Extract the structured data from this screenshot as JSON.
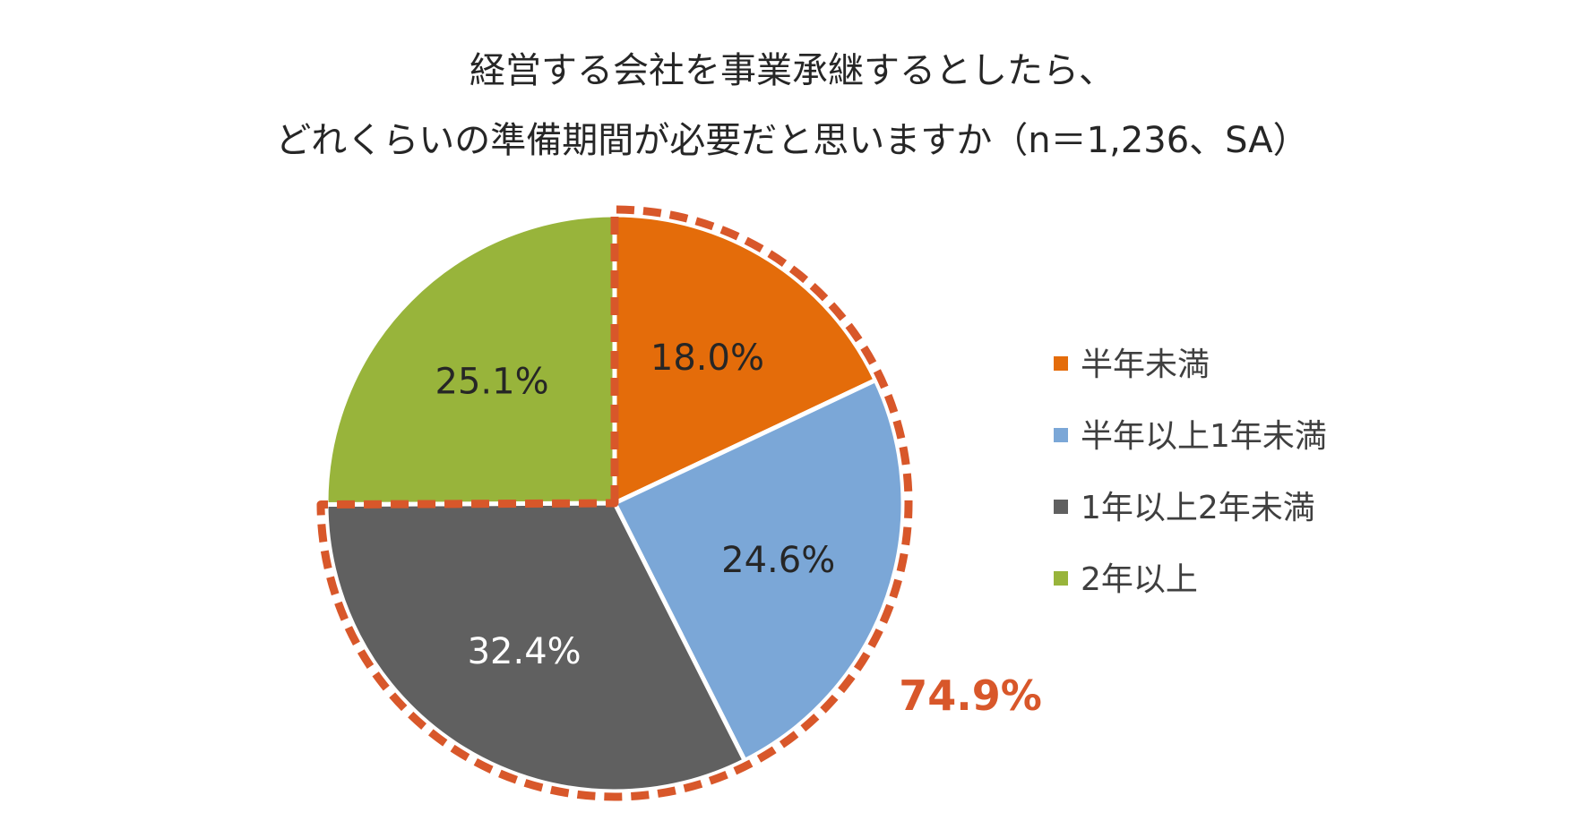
{
  "chart_data": {
    "type": "pie",
    "title": [
      "経営する会社を事業承継するとしたら、",
      "どれくらいの準備期間が必要だと思いますか（n＝1,236、SA）"
    ],
    "start_angle_deg": 0,
    "direction": "clockwise",
    "slices": [
      {
        "name": "半年未満",
        "value": 18.0,
        "label": "18.0%",
        "color": "#E46C0A",
        "label_color": "#262626"
      },
      {
        "name": "半年以上1年未満",
        "value": 24.6,
        "label": "24.6%",
        "color": "#7BA7D7",
        "label_color": "#262626"
      },
      {
        "name": "1年以上2年未満",
        "value": 32.4,
        "label": "32.4%",
        "color": "#606060",
        "label_color": "#ffffff"
      },
      {
        "name": "2年以上",
        "value": 25.1,
        "label": "25.1%",
        "color": "#98B43B",
        "label_color": "#262626"
      }
    ],
    "legend_position": "right",
    "highlight": {
      "label": "74.9%",
      "color": "#D8572A",
      "covers": [
        "半年未満",
        "半年以上1年未満",
        "1年以上2年未満"
      ]
    }
  }
}
